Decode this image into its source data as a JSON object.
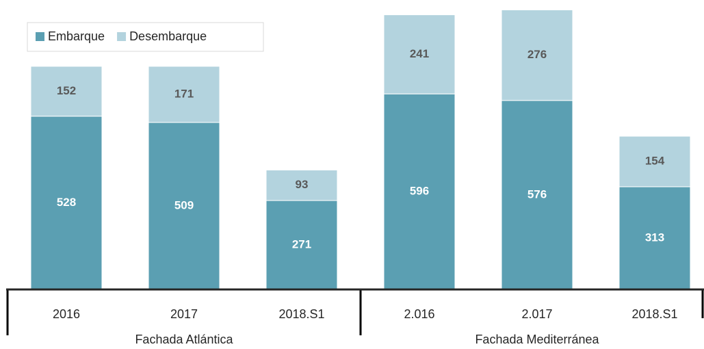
{
  "chart_data": {
    "type": "stacked-bar",
    "groups": [
      {
        "name": "Fachada Atlántica",
        "categories": [
          "2016",
          "2017",
          "2018.S1"
        ]
      },
      {
        "name": "Fachada Mediterránea",
        "categories": [
          "2.016",
          "2.017",
          "2018.S1"
        ]
      }
    ],
    "series": [
      {
        "name": "Embarque",
        "color": "#5b9fb2",
        "values": [
          528,
          509,
          271,
          596,
          576,
          313
        ]
      },
      {
        "name": "Desembarque",
        "color": "#b3d3de",
        "values": [
          152,
          171,
          93,
          241,
          276,
          154
        ]
      }
    ],
    "ylim": [
      0,
      880
    ],
    "legend": "top-left"
  }
}
